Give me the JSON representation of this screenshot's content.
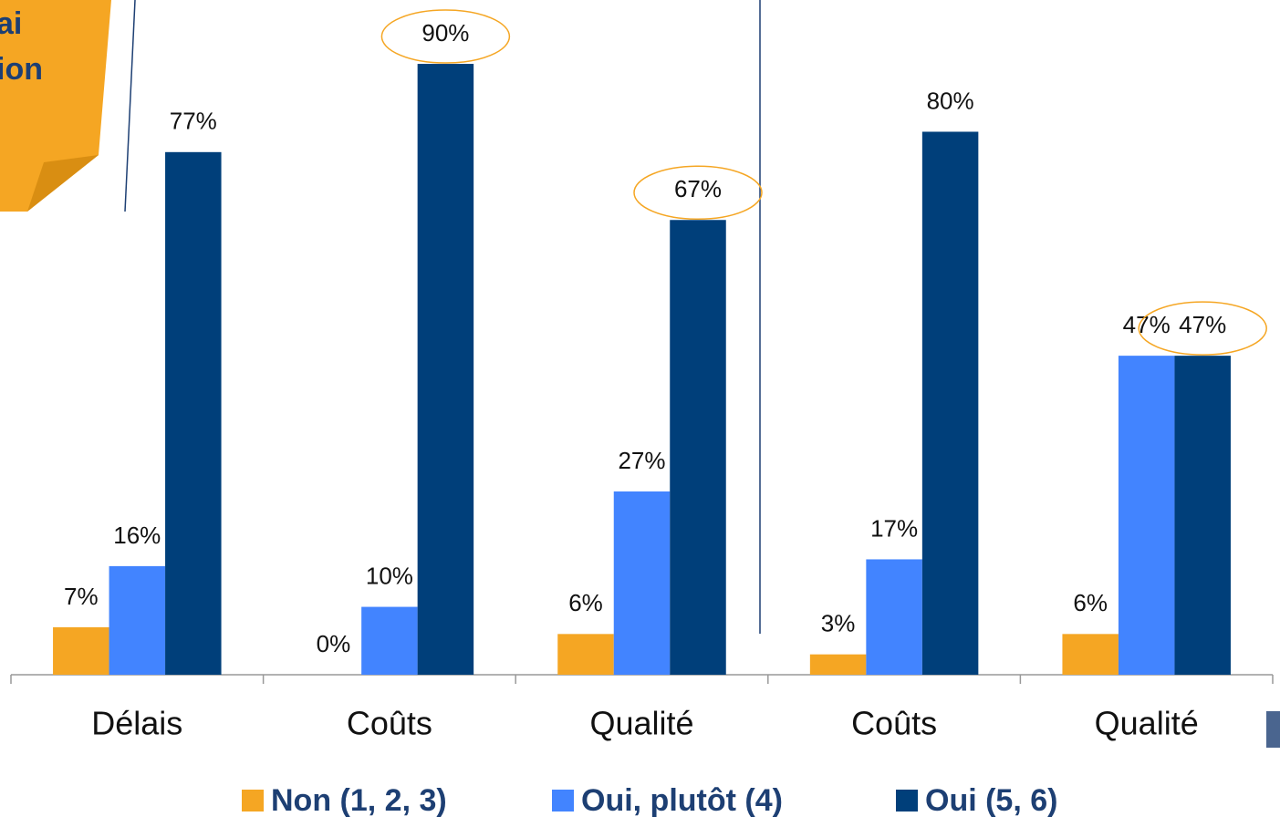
{
  "chart_data": {
    "type": "bar",
    "annotations": [
      "ai",
      "ion"
    ],
    "categories": [
      "Délais",
      "Coûts",
      "Qualité",
      "Coûts",
      "Qualité"
    ],
    "ylim": [
      0,
      100
    ],
    "series": [
      {
        "name": "Non (1, 2, 3)",
        "color": "#f5a623",
        "values": [
          7,
          0,
          6,
          3,
          6
        ],
        "value_labels": [
          "7%",
          "0%",
          "6%",
          "3%",
          "6%"
        ]
      },
      {
        "name": "Oui, plutôt (4)",
        "color": "#4284ff",
        "values": [
          16,
          10,
          27,
          17,
          47
        ],
        "value_labels": [
          "16%",
          "10%",
          "27%",
          "17%",
          "47%"
        ]
      },
      {
        "name": "Oui (5, 6)",
        "color": "#003f7a",
        "values": [
          77,
          90,
          67,
          80,
          47
        ],
        "value_labels": [
          "77%",
          "90%",
          "67%",
          "80%",
          "47%"
        ],
        "highlight": [
          1,
          2,
          4
        ]
      }
    ],
    "highlight_color": "#f5a623"
  }
}
